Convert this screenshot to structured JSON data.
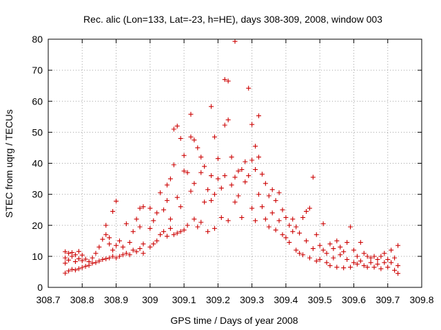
{
  "chart_data": {
    "type": "scatter",
    "title": "Rec. alic (Lon=133, Lat=-23, h=HE), days 308-309, 2008, window 003",
    "xlabel": "GPS time / Days of year 2008",
    "ylabel": "STEC from uqrg / TECUs",
    "xlim": [
      308.7,
      309.8
    ],
    "ylim": [
      0,
      80
    ],
    "x_ticks": [
      308.7,
      308.8,
      308.9,
      309.0,
      309.1,
      309.2,
      309.3,
      309.4,
      309.5,
      309.6,
      309.7,
      309.8
    ],
    "x_tick_labels": [
      "308.7",
      "308.8",
      "308.9",
      "309",
      "309.1",
      "309.2",
      "309.3",
      "309.4",
      "309.5",
      "309.6",
      "309.7",
      "309.8"
    ],
    "y_ticks": [
      0,
      10,
      20,
      30,
      40,
      50,
      60,
      70,
      80
    ],
    "y_tick_labels": [
      "0",
      "10",
      "20",
      "30",
      "40",
      "50",
      "60",
      "70",
      "80"
    ],
    "grid": true,
    "marker": "+",
    "color": "#cc0000",
    "series": [
      {
        "name": "STEC",
        "points": [
          [
            308.75,
            4.6
          ],
          [
            308.75,
            7.8
          ],
          [
            308.75,
            9.5
          ],
          [
            308.75,
            11.5
          ],
          [
            308.76,
            5.3
          ],
          [
            308.76,
            8.8
          ],
          [
            308.76,
            11.0
          ],
          [
            308.77,
            5.8
          ],
          [
            308.77,
            10.0
          ],
          [
            308.77,
            11.2
          ],
          [
            308.78,
            5.6
          ],
          [
            308.78,
            8.3
          ],
          [
            308.78,
            10.5
          ],
          [
            308.79,
            6.0
          ],
          [
            308.79,
            9.2
          ],
          [
            308.79,
            11.6
          ],
          [
            308.8,
            6.4
          ],
          [
            308.8,
            8.6
          ],
          [
            308.8,
            10.4
          ],
          [
            308.81,
            6.8
          ],
          [
            308.81,
            9.1
          ],
          [
            308.82,
            7.1
          ],
          [
            308.82,
            8.3
          ],
          [
            308.83,
            7.8
          ],
          [
            308.83,
            9.5
          ],
          [
            308.84,
            8.0
          ],
          [
            308.84,
            11.0
          ],
          [
            308.85,
            8.5
          ],
          [
            308.85,
            13.0
          ],
          [
            308.86,
            9.0
          ],
          [
            308.86,
            15.5
          ],
          [
            308.87,
            9.2
          ],
          [
            308.87,
            20.0
          ],
          [
            308.87,
            17.0
          ],
          [
            308.88,
            9.5
          ],
          [
            308.88,
            14.0
          ],
          [
            308.88,
            16.0
          ],
          [
            308.89,
            10.0
          ],
          [
            308.89,
            24.5
          ],
          [
            308.89,
            12.0
          ],
          [
            308.9,
            9.5
          ],
          [
            308.9,
            27.8
          ],
          [
            308.9,
            13.5
          ],
          [
            308.91,
            10.0
          ],
          [
            308.91,
            15.0
          ],
          [
            308.92,
            10.5
          ],
          [
            308.92,
            13.0
          ],
          [
            308.93,
            11.0
          ],
          [
            308.93,
            20.5
          ],
          [
            308.94,
            10.5
          ],
          [
            308.94,
            14.5
          ],
          [
            308.95,
            12.0
          ],
          [
            308.95,
            18.0
          ],
          [
            308.96,
            11.5
          ],
          [
            308.96,
            22.0
          ],
          [
            308.97,
            12.5
          ],
          [
            308.97,
            25.5
          ],
          [
            308.97,
            19.5
          ],
          [
            308.98,
            11.0
          ],
          [
            308.98,
            26.0
          ],
          [
            308.98,
            14.0
          ],
          [
            309.0,
            13.0
          ],
          [
            309.0,
            25.5
          ],
          [
            309.0,
            19.0
          ],
          [
            309.01,
            14.0
          ],
          [
            309.01,
            21.5
          ],
          [
            309.02,
            15.0
          ],
          [
            309.02,
            24.0
          ],
          [
            309.03,
            17.0
          ],
          [
            309.03,
            30.5
          ],
          [
            309.04,
            18.0
          ],
          [
            309.04,
            25.0
          ],
          [
            309.05,
            16.5
          ],
          [
            309.05,
            33.0
          ],
          [
            309.05,
            28.0
          ],
          [
            309.06,
            19.0
          ],
          [
            309.06,
            35.0
          ],
          [
            309.06,
            22.0
          ],
          [
            309.07,
            17.0
          ],
          [
            309.07,
            39.5
          ],
          [
            309.07,
            51.0
          ],
          [
            309.08,
            17.5
          ],
          [
            309.08,
            52.0
          ],
          [
            309.08,
            29.0
          ],
          [
            309.09,
            18.0
          ],
          [
            309.09,
            48.0
          ],
          [
            309.09,
            26.0
          ],
          [
            309.1,
            42.5
          ],
          [
            309.1,
            37.5
          ],
          [
            309.1,
            18.5
          ],
          [
            309.11,
            37.0
          ],
          [
            309.11,
            20.0
          ],
          [
            309.12,
            55.8
          ],
          [
            309.12,
            48.5
          ],
          [
            309.12,
            31.0
          ],
          [
            309.13,
            47.5
          ],
          [
            309.13,
            33.5
          ],
          [
            309.13,
            22.0
          ],
          [
            309.14,
            45.0
          ],
          [
            309.14,
            19.5
          ],
          [
            309.15,
            42.0
          ],
          [
            309.15,
            37.0
          ],
          [
            309.15,
            21.0
          ],
          [
            309.16,
            39.0
          ],
          [
            309.16,
            27.5
          ],
          [
            309.17,
            31.5
          ],
          [
            309.17,
            18.0
          ],
          [
            309.18,
            58.3
          ],
          [
            309.18,
            36.0
          ],
          [
            309.18,
            28.0
          ],
          [
            309.19,
            48.5
          ],
          [
            309.19,
            30.0
          ],
          [
            309.19,
            19.0
          ],
          [
            309.2,
            41.5
          ],
          [
            309.2,
            35.0
          ],
          [
            309.21,
            32.0
          ],
          [
            309.21,
            22.5
          ],
          [
            309.22,
            67.0
          ],
          [
            309.22,
            52.3
          ],
          [
            309.22,
            36.0
          ],
          [
            309.23,
            66.5
          ],
          [
            309.23,
            54.0
          ],
          [
            309.23,
            21.5
          ],
          [
            309.24,
            42.0
          ],
          [
            309.24,
            33.0
          ],
          [
            309.25,
            79.3
          ],
          [
            309.25,
            35.5
          ],
          [
            309.25,
            27.5
          ],
          [
            309.26,
            37.5
          ],
          [
            309.26,
            29.5
          ],
          [
            309.27,
            38.0
          ],
          [
            309.27,
            22.5
          ],
          [
            309.28,
            40.5
          ],
          [
            309.28,
            34.0
          ],
          [
            309.29,
            64.2
          ],
          [
            309.29,
            36.0
          ],
          [
            309.3,
            52.5
          ],
          [
            309.3,
            41.0
          ],
          [
            309.3,
            25.5
          ],
          [
            309.31,
            45.5
          ],
          [
            309.31,
            38.0
          ],
          [
            309.31,
            21.5
          ],
          [
            309.32,
            42.0
          ],
          [
            309.32,
            30.0
          ],
          [
            309.32,
            55.3
          ],
          [
            309.33,
            36.5
          ],
          [
            309.33,
            26.0
          ],
          [
            309.34,
            33.5
          ],
          [
            309.34,
            22.0
          ],
          [
            309.35,
            29.5
          ],
          [
            309.35,
            19.5
          ],
          [
            309.36,
            31.5
          ],
          [
            309.36,
            24.0
          ],
          [
            309.37,
            28.0
          ],
          [
            309.37,
            18.5
          ],
          [
            309.38,
            30.5
          ],
          [
            309.38,
            21.5
          ],
          [
            309.39,
            25.0
          ],
          [
            309.39,
            17.0
          ],
          [
            309.4,
            22.5
          ],
          [
            309.4,
            16.0
          ],
          [
            309.41,
            20.0
          ],
          [
            309.41,
            14.5
          ],
          [
            309.42,
            22.0
          ],
          [
            309.42,
            18.0
          ],
          [
            309.43,
            19.5
          ],
          [
            309.43,
            12.0
          ],
          [
            309.44,
            17.5
          ],
          [
            309.44,
            11.0
          ],
          [
            309.45,
            22.5
          ],
          [
            309.45,
            10.5
          ],
          [
            309.46,
            24.5
          ],
          [
            309.46,
            15.0
          ],
          [
            309.47,
            25.5
          ],
          [
            309.47,
            9.5
          ],
          [
            309.48,
            35.5
          ],
          [
            309.48,
            12.5
          ],
          [
            309.49,
            17.0
          ],
          [
            309.49,
            8.5
          ],
          [
            309.5,
            13.5
          ],
          [
            309.5,
            9.0
          ],
          [
            309.51,
            12.0
          ],
          [
            309.51,
            20.5
          ],
          [
            309.52,
            11.0
          ],
          [
            309.52,
            8.0
          ],
          [
            309.53,
            14.0
          ],
          [
            309.53,
            7.0
          ],
          [
            309.54,
            12.5
          ],
          [
            309.54,
            9.5
          ],
          [
            309.55,
            15.0
          ],
          [
            309.55,
            6.5
          ],
          [
            309.56,
            13.0
          ],
          [
            309.56,
            10.5
          ],
          [
            309.57,
            11.5
          ],
          [
            309.57,
            6.3
          ],
          [
            309.58,
            14.5
          ],
          [
            309.58,
            9.0
          ],
          [
            309.59,
            19.5
          ],
          [
            309.59,
            6.5
          ],
          [
            309.6,
            12.0
          ],
          [
            309.6,
            8.0
          ],
          [
            309.61,
            10.0
          ],
          [
            309.61,
            7.5
          ],
          [
            309.62,
            14.5
          ],
          [
            309.62,
            8.5
          ],
          [
            309.63,
            11.0
          ],
          [
            309.63,
            7.0
          ],
          [
            309.64,
            10.0
          ],
          [
            309.64,
            6.5
          ],
          [
            309.65,
            9.5
          ],
          [
            309.65,
            8.0
          ],
          [
            309.66,
            10.0
          ],
          [
            309.66,
            6.5
          ],
          [
            309.67,
            9.0
          ],
          [
            309.67,
            7.5
          ],
          [
            309.68,
            10.0
          ],
          [
            309.68,
            6.0
          ],
          [
            309.69,
            11.0
          ],
          [
            309.69,
            8.0
          ],
          [
            309.7,
            9.0
          ],
          [
            309.7,
            6.5
          ],
          [
            309.71,
            12.0
          ],
          [
            309.71,
            8.0
          ],
          [
            309.72,
            9.5
          ],
          [
            309.72,
            5.5
          ],
          [
            309.73,
            13.5
          ],
          [
            309.73,
            7.0
          ],
          [
            309.73,
            4.5
          ]
        ]
      }
    ]
  }
}
